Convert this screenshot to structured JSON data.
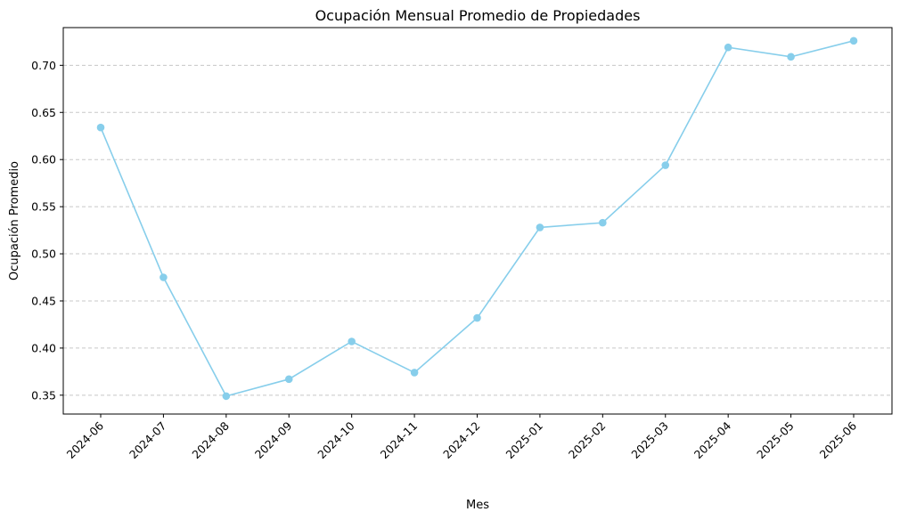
{
  "chart_data": {
    "type": "line",
    "title": "Ocupación Mensual Promedio de Propiedades",
    "xlabel": "Mes",
    "ylabel": "Ocupación Promedio",
    "categories": [
      "2024-06",
      "2024-07",
      "2024-08",
      "2024-09",
      "2024-10",
      "2024-11",
      "2024-12",
      "2025-01",
      "2025-02",
      "2025-03",
      "2025-04",
      "2025-05",
      "2025-06"
    ],
    "series": [
      {
        "values": [
          0.634,
          0.475,
          0.349,
          0.367,
          0.407,
          0.374,
          0.432,
          0.528,
          0.533,
          0.594,
          0.719,
          0.709,
          0.726
        ]
      }
    ],
    "ylim": [
      0.33,
      0.74
    ],
    "yticks": [
      "0.35",
      "0.40",
      "0.45",
      "0.50",
      "0.55",
      "0.60",
      "0.65",
      "0.70"
    ],
    "grid": "y-dashed",
    "line_color": "#87CEEB",
    "grid_color": "#c8c8c8"
  }
}
